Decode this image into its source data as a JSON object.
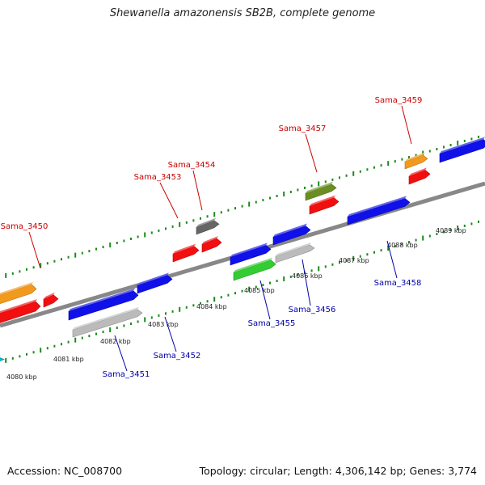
{
  "title": "Shewanella amazonensis SB2B, complete genome",
  "footer": {
    "accession": "Accession: NC_008700",
    "summary": "Topology: circular; Length: 4,306,142 bp; Genes: 3,774"
  },
  "colors": {
    "forward_label": "#cc0000",
    "reverse_label": "#0000aa",
    "backbone": "#8a8a8a",
    "ruler": "#1a8a1a"
  },
  "ticks": [
    {
      "text": "4080 kbp"
    },
    {
      "text": "4081 kbp"
    },
    {
      "text": "4082 kbp"
    },
    {
      "text": "4083 kbp"
    },
    {
      "text": "4084 kbp"
    },
    {
      "text": "4085 kbp"
    },
    {
      "text": "4086 kbp"
    },
    {
      "text": "4087 kbp"
    },
    {
      "text": "4088 kbp"
    },
    {
      "text": "4089 kbp"
    }
  ],
  "labels": [
    {
      "text": "Sama_3450",
      "strand": "forward"
    },
    {
      "text": "Sama_3453",
      "strand": "forward"
    },
    {
      "text": "Sama_3454",
      "strand": "forward"
    },
    {
      "text": "Sama_3457",
      "strand": "forward"
    },
    {
      "text": "Sama_3459",
      "strand": "forward"
    },
    {
      "text": "Sama_3451",
      "strand": "reverse"
    },
    {
      "text": "Sama_3452",
      "strand": "reverse"
    },
    {
      "text": "Sama_3455",
      "strand": "reverse"
    },
    {
      "text": "Sama_3456",
      "strand": "reverse"
    },
    {
      "text": "Sama_3458",
      "strand": "reverse"
    }
  ],
  "features": [
    {
      "color": "#f29a1d"
    },
    {
      "color": "#f20f0f"
    },
    {
      "color": "#f20f0f"
    },
    {
      "color": "#f20f0f"
    },
    {
      "color": "#666666"
    },
    {
      "color": "#f20f0f"
    },
    {
      "color": "#6b8e23"
    },
    {
      "color": "#f20f0f"
    },
    {
      "color": "#f29a1d"
    },
    {
      "color": "#f20f0f"
    },
    {
      "color": "#1010e8"
    },
    {
      "color": "#1010e8"
    },
    {
      "color": "#1010e8"
    },
    {
      "color": "#1010e8"
    },
    {
      "color": "#1010e8"
    },
    {
      "color": "#1010e8"
    },
    {
      "color": "#bbbbbb"
    },
    {
      "color": "#bbbbbb"
    },
    {
      "color": "#33cc33"
    },
    {
      "color": "#00bcd4"
    }
  ]
}
